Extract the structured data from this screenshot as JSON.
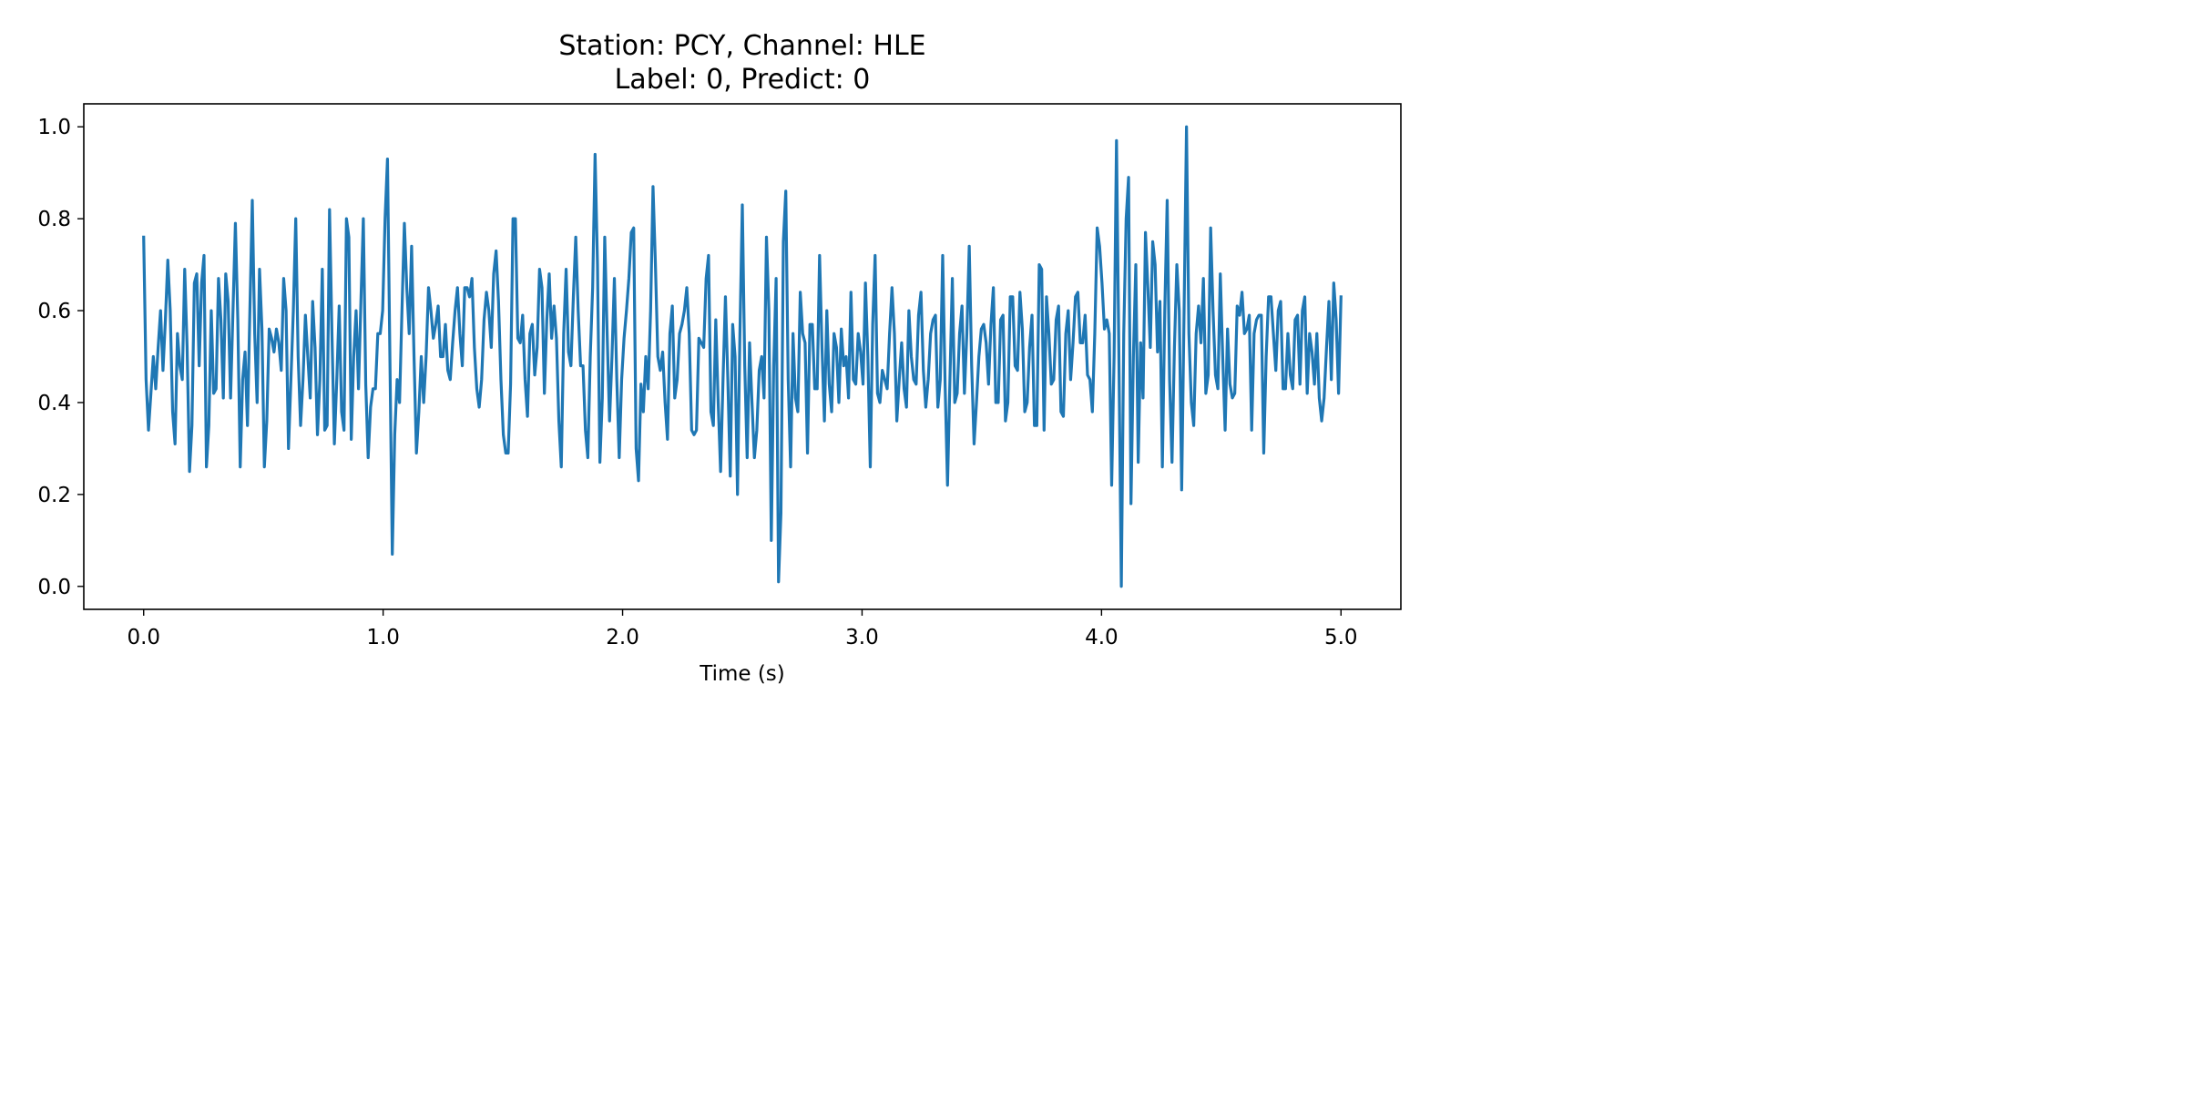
{
  "chart_data": {
    "type": "line",
    "title_lines": [
      "Station: PCY, Channel: HLE",
      "Label: 0, Predict: 0"
    ],
    "xlabel": "Time (s)",
    "ylabel": "",
    "xlim": [
      -0.25,
      5.25
    ],
    "ylim": [
      -0.05,
      1.05
    ],
    "x_ticks": [
      0.0,
      1.0,
      2.0,
      3.0,
      4.0,
      5.0
    ],
    "x_tick_labels": [
      "0.0",
      "1.0",
      "2.0",
      "3.0",
      "4.0",
      "5.0"
    ],
    "y_ticks": [
      0.0,
      0.2,
      0.4,
      0.6,
      0.8,
      1.0
    ],
    "y_tick_labels": [
      "0.0",
      "0.2",
      "0.4",
      "0.6",
      "0.8",
      "1.0"
    ],
    "grid": false,
    "line_color": "#1f77b4",
    "series": [
      {
        "x_start": 0.0,
        "x_end": 5.0,
        "values": [
          0.76,
          0.45,
          0.34,
          0.42,
          0.5,
          0.43,
          0.52,
          0.6,
          0.47,
          0.58,
          0.71,
          0.6,
          0.38,
          0.31,
          0.55,
          0.48,
          0.45,
          0.69,
          0.52,
          0.25,
          0.35,
          0.66,
          0.68,
          0.48,
          0.66,
          0.72,
          0.26,
          0.35,
          0.6,
          0.42,
          0.43,
          0.67,
          0.58,
          0.41,
          0.68,
          0.62,
          0.41,
          0.6,
          0.79,
          0.58,
          0.26,
          0.45,
          0.51,
          0.35,
          0.6,
          0.84,
          0.55,
          0.4,
          0.69,
          0.56,
          0.26,
          0.36,
          0.56,
          0.54,
          0.51,
          0.56,
          0.53,
          0.47,
          0.67,
          0.6,
          0.3,
          0.45,
          0.6,
          0.8,
          0.5,
          0.35,
          0.45,
          0.59,
          0.5,
          0.41,
          0.62,
          0.52,
          0.33,
          0.45,
          0.69,
          0.34,
          0.35,
          0.82,
          0.55,
          0.31,
          0.45,
          0.61,
          0.38,
          0.34,
          0.8,
          0.76,
          0.32,
          0.5,
          0.6,
          0.43,
          0.62,
          0.8,
          0.44,
          0.28,
          0.39,
          0.43,
          0.43,
          0.55,
          0.55,
          0.6,
          0.8,
          0.93,
          0.5,
          0.07,
          0.33,
          0.45,
          0.4,
          0.6,
          0.79,
          0.65,
          0.55,
          0.74,
          0.5,
          0.29,
          0.38,
          0.5,
          0.4,
          0.5,
          0.65,
          0.6,
          0.54,
          0.57,
          0.61,
          0.5,
          0.5,
          0.57,
          0.47,
          0.45,
          0.53,
          0.6,
          0.65,
          0.55,
          0.48,
          0.65,
          0.65,
          0.63,
          0.67,
          0.52,
          0.43,
          0.39,
          0.45,
          0.58,
          0.64,
          0.6,
          0.52,
          0.68,
          0.73,
          0.62,
          0.45,
          0.33,
          0.29,
          0.29,
          0.44,
          0.8,
          0.8,
          0.54,
          0.53,
          0.59,
          0.45,
          0.37,
          0.55,
          0.57,
          0.46,
          0.52,
          0.69,
          0.65,
          0.42,
          0.58,
          0.68,
          0.54,
          0.61,
          0.54,
          0.36,
          0.26,
          0.55,
          0.69,
          0.51,
          0.48,
          0.63,
          0.76,
          0.6,
          0.48,
          0.48,
          0.34,
          0.28,
          0.5,
          0.65,
          0.94,
          0.7,
          0.27,
          0.41,
          0.76,
          0.55,
          0.36,
          0.5,
          0.67,
          0.45,
          0.28,
          0.45,
          0.54,
          0.6,
          0.67,
          0.77,
          0.78,
          0.3,
          0.23,
          0.44,
          0.38,
          0.5,
          0.43,
          0.6,
          0.87,
          0.7,
          0.5,
          0.47,
          0.51,
          0.4,
          0.32,
          0.55,
          0.61,
          0.41,
          0.45,
          0.55,
          0.57,
          0.6,
          0.65,
          0.55,
          0.34,
          0.33,
          0.34,
          0.54,
          0.53,
          0.52,
          0.67,
          0.72,
          0.38,
          0.35,
          0.58,
          0.4,
          0.25,
          0.45,
          0.63,
          0.45,
          0.24,
          0.57,
          0.5,
          0.2,
          0.55,
          0.83,
          0.48,
          0.28,
          0.53,
          0.4,
          0.28,
          0.34,
          0.47,
          0.5,
          0.41,
          0.76,
          0.6,
          0.1,
          0.48,
          0.67,
          0.01,
          0.16,
          0.75,
          0.86,
          0.45,
          0.26,
          0.55,
          0.41,
          0.38,
          0.64,
          0.55,
          0.53,
          0.29,
          0.57,
          0.57,
          0.43,
          0.43,
          0.72,
          0.52,
          0.36,
          0.6,
          0.44,
          0.38,
          0.55,
          0.52,
          0.4,
          0.56,
          0.48,
          0.5,
          0.41,
          0.64,
          0.45,
          0.44,
          0.55,
          0.51,
          0.44,
          0.66,
          0.5,
          0.26,
          0.57,
          0.72,
          0.42,
          0.4,
          0.47,
          0.45,
          0.43,
          0.55,
          0.65,
          0.55,
          0.36,
          0.45,
          0.53,
          0.43,
          0.39,
          0.6,
          0.5,
          0.45,
          0.44,
          0.59,
          0.64,
          0.47,
          0.39,
          0.45,
          0.55,
          0.58,
          0.59,
          0.39,
          0.45,
          0.72,
          0.44,
          0.22,
          0.45,
          0.67,
          0.4,
          0.42,
          0.55,
          0.61,
          0.42,
          0.55,
          0.74,
          0.48,
          0.31,
          0.4,
          0.5,
          0.56,
          0.57,
          0.53,
          0.44,
          0.57,
          0.65,
          0.4,
          0.4,
          0.58,
          0.59,
          0.36,
          0.4,
          0.63,
          0.63,
          0.48,
          0.47,
          0.64,
          0.56,
          0.38,
          0.4,
          0.52,
          0.59,
          0.35,
          0.35,
          0.7,
          0.69,
          0.34,
          0.63,
          0.55,
          0.44,
          0.45,
          0.58,
          0.61,
          0.38,
          0.37,
          0.55,
          0.6,
          0.45,
          0.53,
          0.63,
          0.64,
          0.53,
          0.53,
          0.59,
          0.46,
          0.45,
          0.38,
          0.55,
          0.78,
          0.74,
          0.66,
          0.56,
          0.58,
          0.55,
          0.22,
          0.5,
          0.97,
          0.5,
          0.0,
          0.55,
          0.8,
          0.89,
          0.18,
          0.5,
          0.7,
          0.27,
          0.53,
          0.41,
          0.77,
          0.65,
          0.52,
          0.75,
          0.7,
          0.51,
          0.62,
          0.26,
          0.6,
          0.84,
          0.45,
          0.27,
          0.52,
          0.7,
          0.6,
          0.21,
          0.6,
          1.0,
          0.55,
          0.4,
          0.35,
          0.55,
          0.61,
          0.53,
          0.67,
          0.42,
          0.46,
          0.78,
          0.6,
          0.46,
          0.43,
          0.68,
          0.5,
          0.34,
          0.56,
          0.44,
          0.41,
          0.42,
          0.61,
          0.59,
          0.64,
          0.55,
          0.56,
          0.59,
          0.34,
          0.55,
          0.58,
          0.59,
          0.59,
          0.29,
          0.5,
          0.63,
          0.63,
          0.55,
          0.47,
          0.6,
          0.62,
          0.43,
          0.43,
          0.55,
          0.46,
          0.43,
          0.58,
          0.59,
          0.44,
          0.6,
          0.63,
          0.42,
          0.55,
          0.51,
          0.44,
          0.55,
          0.41,
          0.36,
          0.41,
          0.52,
          0.62,
          0.45,
          0.66,
          0.58,
          0.42,
          0.63
        ]
      }
    ]
  }
}
